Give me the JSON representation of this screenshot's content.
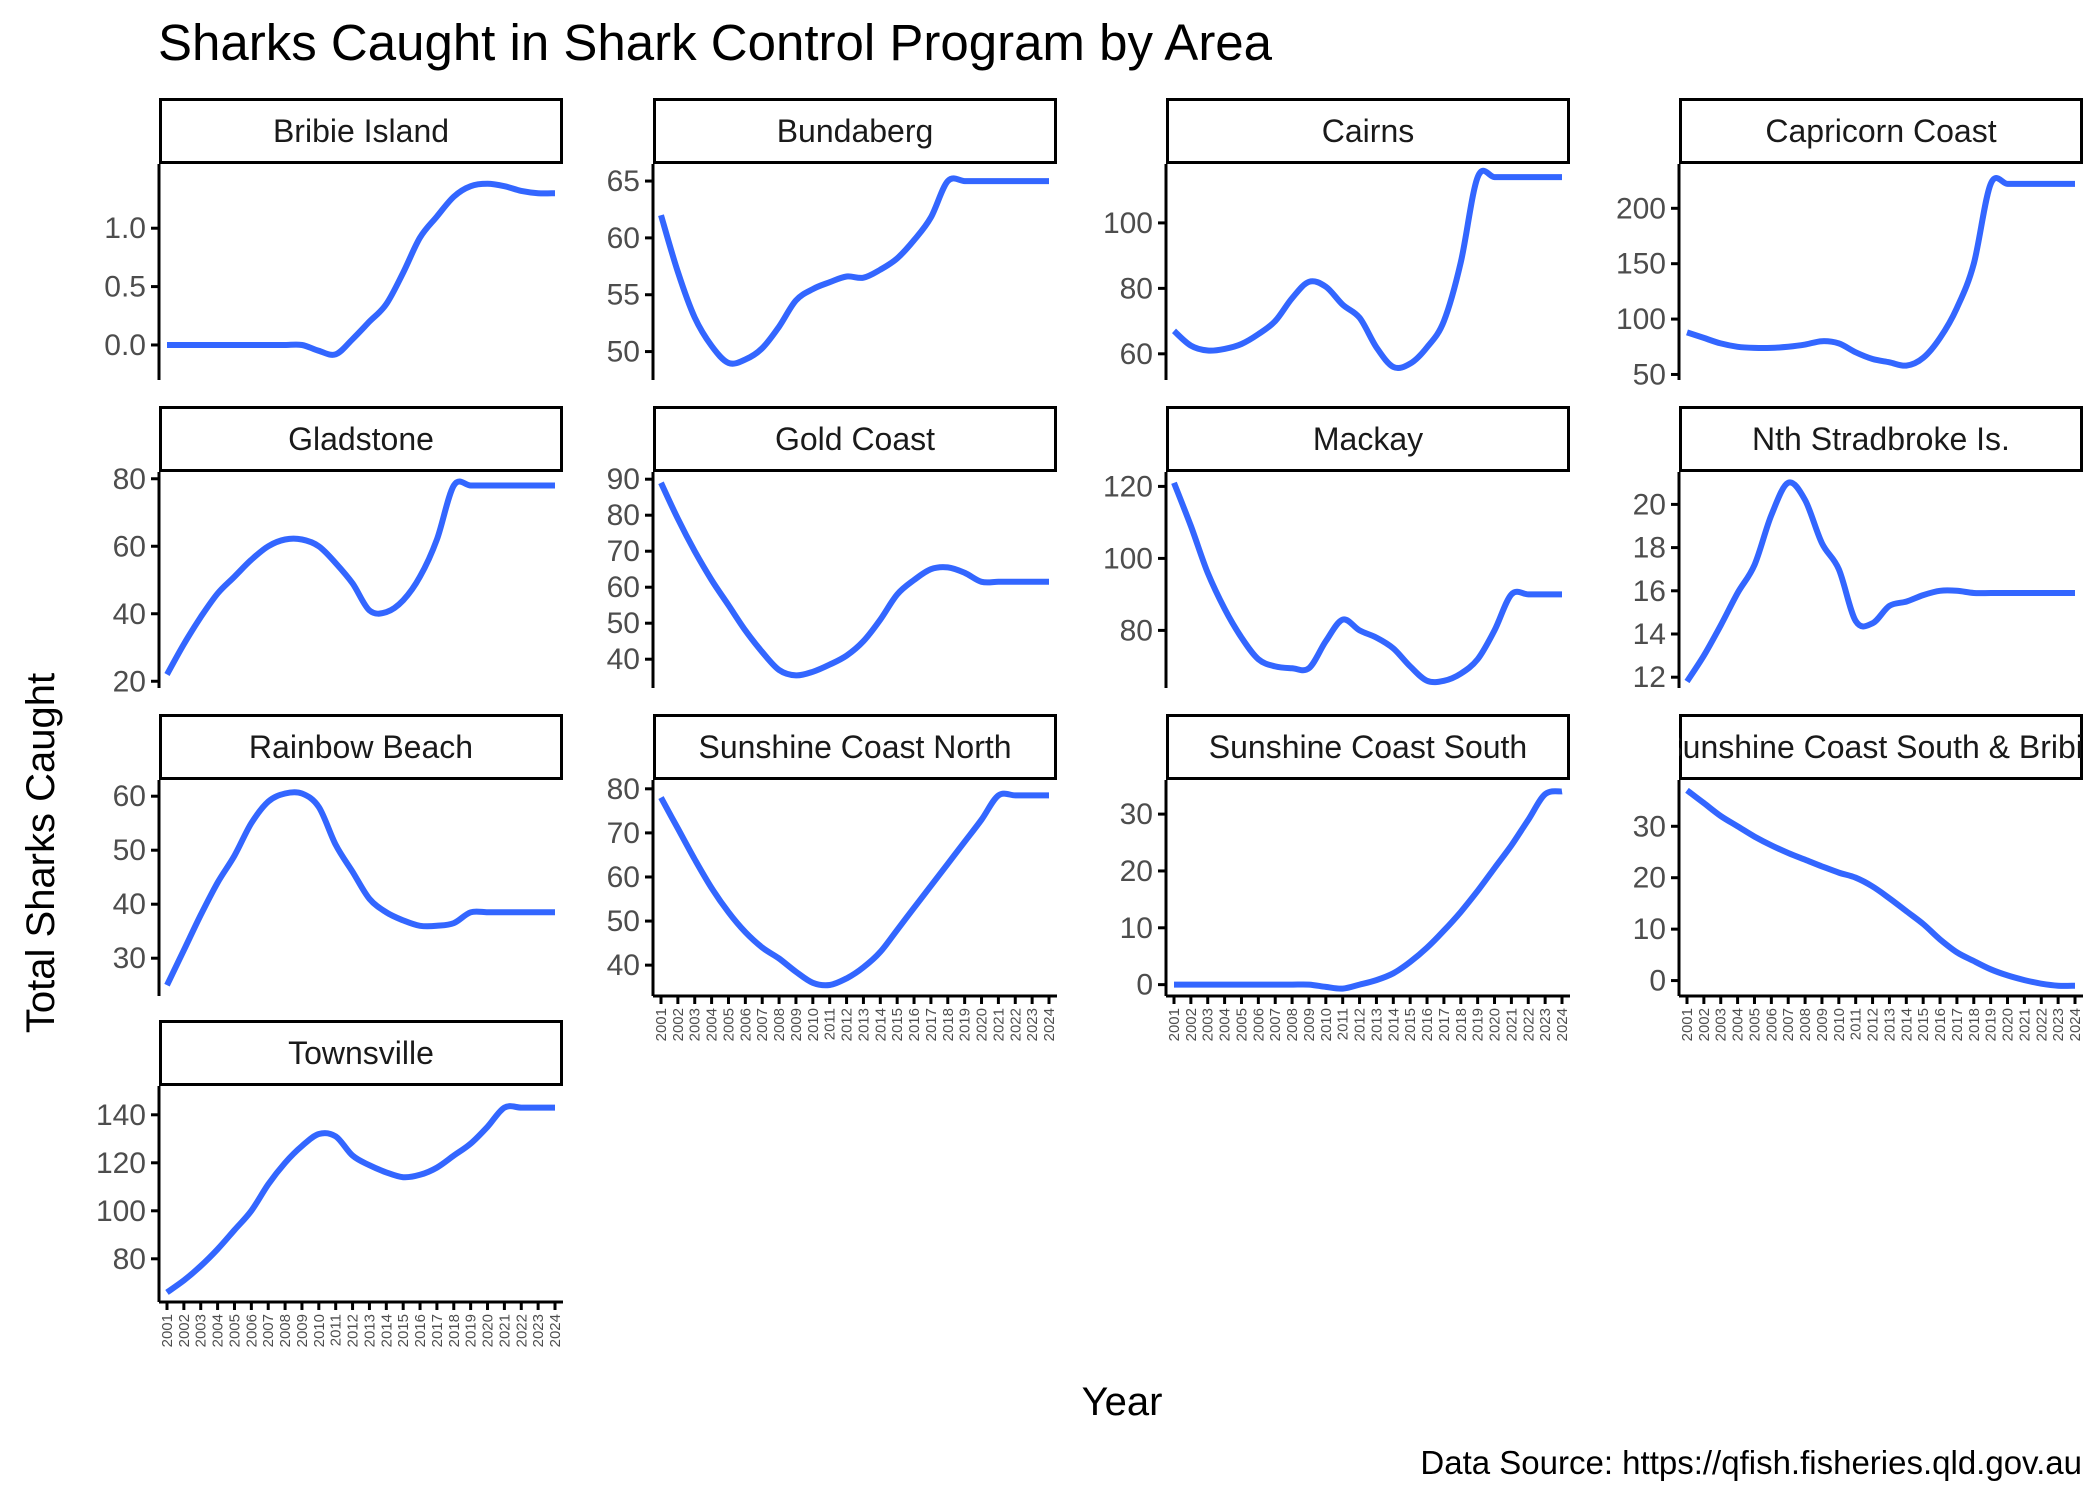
{
  "chart_data": {
    "type": "line",
    "title": "Sharks Caught in Shark Control Program by Area",
    "xlabel": "Year",
    "ylabel": "Total Sharks Caught",
    "caption": "Data Source: https://qfish.fisheries.qld.gov.au",
    "line_color": "#3366FF",
    "layout": "facet-wrap 4 columns, free y scales",
    "x": [
      "2001",
      "2002",
      "2003",
      "2004",
      "2005",
      "2006",
      "2007",
      "2008",
      "2009",
      "2010",
      "2011",
      "2012",
      "2013",
      "2014",
      "2015",
      "2016",
      "2017",
      "2018",
      "2019",
      "2020",
      "2021",
      "2022",
      "2023",
      "2024"
    ],
    "panels": [
      {
        "name": "Bribie Island",
        "ylim": [
          -0.3,
          1.55
        ],
        "yticks": [
          0.0,
          0.5,
          1.0
        ],
        "ytick_labels": [
          "0.0",
          "0.5",
          "1.0"
        ],
        "values": [
          0,
          0,
          0,
          0,
          0,
          0,
          0,
          0,
          0,
          -0.05,
          -0.08,
          0.05,
          0.2,
          0.35,
          0.62,
          0.92,
          1.1,
          1.27,
          1.36,
          1.38,
          1.36,
          1.32,
          1.3,
          1.3
        ]
      },
      {
        "name": "Bundaberg",
        "ylim": [
          47.5,
          66.5
        ],
        "yticks": [
          50,
          55,
          60,
          65
        ],
        "ytick_labels": [
          "50",
          "55",
          "60",
          "65"
        ],
        "values": [
          62,
          57,
          53,
          50.5,
          49,
          49.3,
          50.3,
          52.2,
          54.5,
          55.5,
          56.1,
          56.6,
          56.5,
          57.2,
          58.2,
          59.8,
          61.8,
          65,
          65,
          65,
          65,
          65,
          65,
          65
        ]
      },
      {
        "name": "Cairns",
        "ylim": [
          52,
          118
        ],
        "yticks": [
          60,
          80,
          100
        ],
        "ytick_labels": [
          "60",
          "80",
          "100"
        ],
        "values": [
          67,
          62.5,
          61,
          61.5,
          63,
          66,
          70,
          77,
          82,
          80.5,
          75,
          71,
          62,
          56,
          57,
          62,
          70,
          88,
          114,
          114,
          114,
          114,
          114,
          114
        ]
      },
      {
        "name": "Capricorn Coast",
        "ylim": [
          45,
          240
        ],
        "yticks": [
          50,
          100,
          150,
          200
        ],
        "ytick_labels": [
          "50",
          "100",
          "150",
          "200"
        ],
        "values": [
          88,
          83,
          78,
          75,
          74,
          74,
          75,
          77,
          80,
          78,
          70,
          64,
          61,
          58,
          65,
          83,
          110,
          150,
          222,
          222,
          222,
          222,
          222,
          222
        ]
      },
      {
        "name": "Gladstone",
        "ylim": [
          18,
          82
        ],
        "yticks": [
          20,
          40,
          60,
          80
        ],
        "ytick_labels": [
          "20",
          "40",
          "60",
          "80"
        ],
        "values": [
          22,
          31,
          39,
          46,
          51,
          56,
          60,
          62,
          62,
          60,
          55,
          49,
          41,
          40.5,
          44,
          51,
          62,
          78,
          78,
          78,
          78,
          78,
          78,
          78
        ]
      },
      {
        "name": "Gold Coast",
        "ylim": [
          32,
          92
        ],
        "yticks": [
          40,
          50,
          60,
          70,
          80,
          90
        ],
        "ytick_labels": [
          "40",
          "50",
          "60",
          "70",
          "80",
          "90"
        ],
        "values": [
          89,
          79,
          70,
          62,
          55,
          48,
          42,
          37,
          35.5,
          36.5,
          38.5,
          41,
          45,
          51,
          58,
          62,
          65,
          65.5,
          64,
          61.5,
          61.5,
          61.5,
          61.5,
          61.5
        ]
      },
      {
        "name": "Mackay",
        "ylim": [
          64,
          124
        ],
        "yticks": [
          80,
          100,
          120
        ],
        "ytick_labels": [
          "80",
          "100",
          "120"
        ],
        "values": [
          121,
          109,
          96,
          86,
          78,
          72,
          70,
          69.5,
          69.5,
          77,
          83,
          80,
          78,
          75,
          70,
          66,
          66,
          68,
          72,
          80,
          90,
          90,
          90,
          90
        ]
      },
      {
        "name": "Nth Stradbroke Is.",
        "ylim": [
          11.5,
          21.5
        ],
        "yticks": [
          12,
          14,
          16,
          18,
          20
        ],
        "ytick_labels": [
          "12",
          "14",
          "16",
          "18",
          "20"
        ],
        "values": [
          11.8,
          13,
          14.4,
          15.9,
          17.2,
          19.5,
          21,
          20.2,
          18.2,
          17,
          14.6,
          14.5,
          15.3,
          15.5,
          15.8,
          16,
          16,
          15.9,
          15.9,
          15.9,
          15.9,
          15.9,
          15.9,
          15.9
        ]
      },
      {
        "name": "Rainbow Beach",
        "ylim": [
          23,
          63
        ],
        "yticks": [
          30,
          40,
          50,
          60
        ],
        "ytick_labels": [
          "30",
          "40",
          "50",
          "60"
        ],
        "values": [
          25,
          31.5,
          38,
          44,
          49,
          55,
          59,
          60.5,
          60.5,
          58,
          51,
          46,
          41,
          38.5,
          37,
          36,
          36,
          36.5,
          38.5,
          38.5,
          38.5,
          38.5,
          38.5,
          38.5
        ]
      },
      {
        "name": "Sunshine Coast North",
        "ylim": [
          33,
          82
        ],
        "yticks": [
          40,
          50,
          60,
          70,
          80
        ],
        "ytick_labels": [
          "40",
          "50",
          "60",
          "70",
          "80"
        ],
        "values": [
          78,
          71,
          64,
          57.5,
          52,
          47.5,
          44,
          41.5,
          38.5,
          36,
          35.5,
          37,
          39.5,
          43,
          48,
          53,
          58,
          63,
          68,
          73,
          78.5,
          78.5,
          78.5,
          78.5
        ]
      },
      {
        "name": "Sunshine Coast South",
        "ylim": [
          -2,
          36
        ],
        "yticks": [
          0,
          10,
          20,
          30
        ],
        "ytick_labels": [
          "0",
          "10",
          "20",
          "30"
        ],
        "values": [
          0,
          0,
          0,
          0,
          0,
          0,
          0,
          0,
          0,
          -0.4,
          -0.7,
          0,
          0.8,
          2,
          4,
          6.5,
          9.5,
          12.8,
          16.5,
          20.5,
          24.5,
          29,
          33.5,
          34
        ]
      },
      {
        "name": "Sunshine Coast South & Bribie",
        "ylim": [
          -3,
          39
        ],
        "yticks": [
          0,
          10,
          20,
          30
        ],
        "ytick_labels": [
          "0",
          "10",
          "20",
          "30"
        ],
        "values": [
          37,
          34.5,
          32,
          30,
          28,
          26.3,
          24.8,
          23.5,
          22.2,
          21,
          20,
          18.3,
          16,
          13.5,
          11,
          8,
          5.5,
          3.8,
          2.2,
          1,
          0.1,
          -0.6,
          -1,
          -1
        ]
      },
      {
        "name": "Townsville",
        "ylim": [
          62,
          152
        ],
        "yticks": [
          80,
          100,
          120,
          140
        ],
        "ytick_labels": [
          "80",
          "100",
          "120",
          "140"
        ],
        "values": [
          66,
          71,
          77,
          84,
          92,
          100,
          111,
          120,
          127,
          132,
          131,
          123,
          119,
          116,
          114,
          115,
          118,
          123,
          128,
          135,
          143,
          143,
          143,
          143
        ]
      }
    ]
  }
}
